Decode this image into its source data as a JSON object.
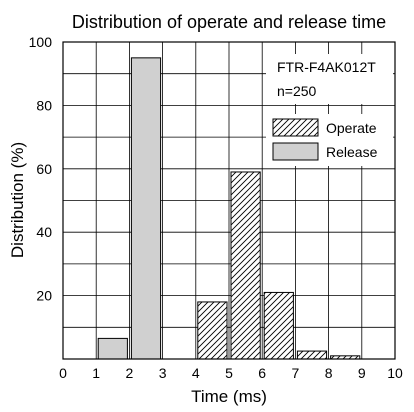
{
  "chart_data": {
    "type": "bar",
    "title": "Distribution of operate and release time",
    "xlabel": "Time (ms)",
    "ylabel": "Distribution (%)",
    "xlim": [
      0,
      10
    ],
    "ylim": [
      0,
      100
    ],
    "x_ticks": [
      "0",
      "1",
      "2",
      "3",
      "4",
      "5",
      "6",
      "7",
      "8",
      "9",
      "10"
    ],
    "y_ticks": [
      "20",
      "40",
      "60",
      "80",
      "100"
    ],
    "grid": true,
    "legend_position": "top-right",
    "annotations": [
      "FTR-F4AK012T",
      "n=250"
    ],
    "series": [
      {
        "name": "Operate",
        "pattern": "diagonal-hatch",
        "color": "#ffffff",
        "bins": [
          [
            4,
            5
          ],
          [
            5,
            6
          ],
          [
            6,
            7
          ],
          [
            7,
            8
          ],
          [
            8,
            9
          ]
        ],
        "values": [
          18,
          59,
          21,
          2.5,
          1
        ]
      },
      {
        "name": "Release",
        "pattern": "solid",
        "color": "#d0d0d0",
        "bins": [
          [
            1,
            2
          ],
          [
            2,
            3
          ]
        ],
        "values": [
          6.5,
          95
        ]
      }
    ]
  }
}
